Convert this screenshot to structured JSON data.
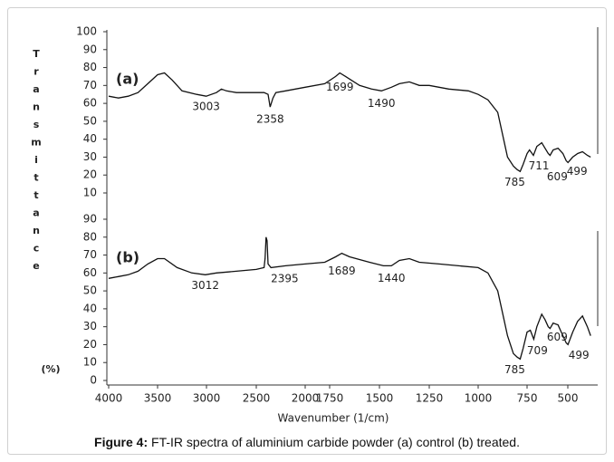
{
  "chart_data": {
    "type": "line",
    "xlabel": "Wavenumber (1/cm)",
    "ylabel": "Transmittance",
    "ylabel_unit": "(%)",
    "caption_label": "Figure 4:",
    "caption": "FT-IR spectra of aluminium carbide powder (a) control (b) treated.",
    "xlim": [
      4000,
      350
    ],
    "xticks": [
      4000,
      3500,
      3000,
      2500,
      2000,
      1750,
      1500,
      1250,
      1000,
      750,
      500
    ],
    "color": "#111111",
    "panels": [
      {
        "label": "(a)",
        "ylim": [
          10,
          100
        ],
        "yticks": [
          10,
          20,
          30,
          40,
          50,
          60,
          70,
          80,
          90,
          100
        ],
        "x": [
          4000,
          3900,
          3800,
          3700,
          3600,
          3500,
          3430,
          3350,
          3250,
          3100,
          3003,
          2900,
          2850,
          2800,
          2700,
          2600,
          2500,
          2420,
          2380,
          2358,
          2330,
          2300,
          2200,
          2000,
          1800,
          1720,
          1699,
          1670,
          1600,
          1540,
          1490,
          1440,
          1400,
          1350,
          1300,
          1250,
          1150,
          1050,
          1000,
          950,
          900,
          870,
          850,
          820,
          800,
          785,
          770,
          750,
          735,
          711,
          690,
          660,
          640,
          620,
          609,
          590,
          560,
          530,
          510,
          499,
          470,
          440,
          410,
          380,
          360
        ],
        "values": [
          64,
          63,
          64,
          66,
          71,
          76,
          77,
          73,
          67,
          65,
          64,
          66,
          68,
          67,
          66,
          66,
          66,
          66,
          65,
          58,
          63,
          66,
          67,
          69,
          71,
          75,
          77,
          75,
          70,
          68,
          67,
          69,
          71,
          72,
          70,
          70,
          68,
          67,
          65,
          62,
          55,
          40,
          30,
          25,
          23,
          22,
          26,
          32,
          34,
          31,
          36,
          38,
          35,
          32,
          31,
          34,
          35,
          32,
          28,
          27,
          30,
          32,
          33,
          31,
          30
        ],
        "peaks": [
          3003,
          2358,
          1699,
          1490,
          785,
          711,
          609,
          499
        ]
      },
      {
        "label": "(b)",
        "ylim": [
          0,
          90
        ],
        "yticks": [
          0,
          10,
          20,
          30,
          40,
          50,
          60,
          70,
          80,
          90
        ],
        "x": [
          4000,
          3900,
          3800,
          3700,
          3600,
          3500,
          3430,
          3300,
          3150,
          3012,
          2900,
          2700,
          2500,
          2420,
          2410,
          2400,
          2390,
          2380,
          2350,
          2200,
          2000,
          1800,
          1720,
          1689,
          1650,
          1550,
          1480,
          1440,
          1400,
          1350,
          1300,
          1200,
          1100,
          1000,
          950,
          900,
          870,
          850,
          820,
          800,
          785,
          770,
          750,
          730,
          709,
          690,
          660,
          640,
          620,
          609,
          590,
          560,
          530,
          510,
          499,
          470,
          440,
          410,
          380,
          360
        ],
        "values": [
          57,
          58,
          59,
          61,
          65,
          68,
          68,
          63,
          60,
          59,
          60,
          61,
          62,
          63,
          68,
          80,
          78,
          65,
          63,
          64,
          65,
          66,
          69,
          71,
          69,
          66,
          64,
          64,
          67,
          68,
          66,
          65,
          64,
          63,
          60,
          50,
          35,
          25,
          15,
          13,
          12,
          18,
          27,
          28,
          23,
          30,
          37,
          34,
          30,
          29,
          32,
          31,
          25,
          21,
          20,
          27,
          33,
          36,
          30,
          25
        ],
        "peaks": [
          3012,
          2395,
          1689,
          1440,
          785,
          709,
          609,
          499
        ]
      }
    ]
  }
}
